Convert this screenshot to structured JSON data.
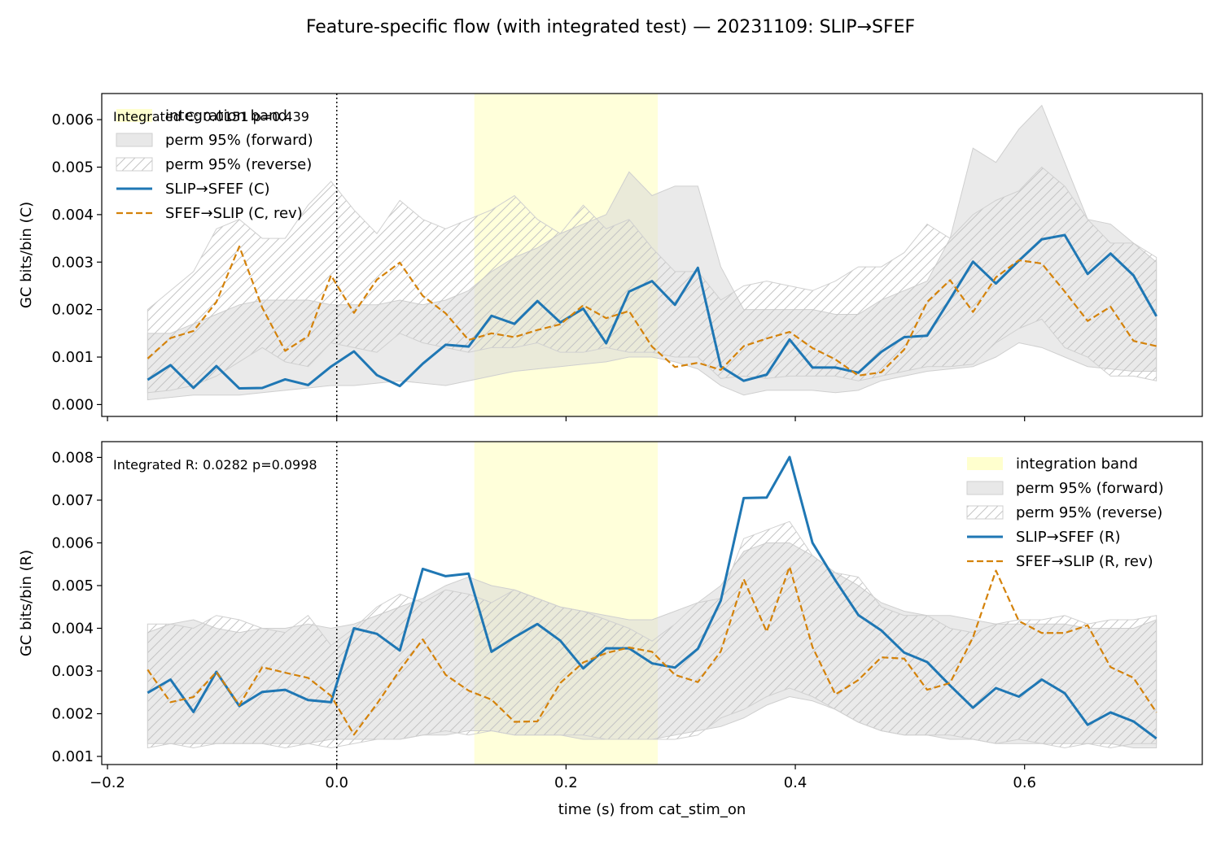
{
  "title": "Feature-specific flow (with integrated test) — 20231109: SLIP→SFEF",
  "xlabel": "time (s) from cat_stim_on",
  "colors": {
    "forward": "#1f77b4",
    "reverse": "#d4820a",
    "band": "#ffffc2",
    "perm_fill": "#d9d9d9",
    "hatch": "#bfbfbf"
  },
  "chart_data": [
    {
      "type": "line",
      "ylabel": "GC bits/bin (C)",
      "annotation": "Integrated C: 0.0151  p=0.439",
      "xlim": [
        -0.205,
        0.755
      ],
      "ylim": [
        -0.00025,
        0.00655
      ],
      "yticks": [
        0,
        0.001,
        0.002,
        0.003,
        0.004,
        0.005,
        0.006
      ],
      "ytick_labels": [
        "0.000",
        "0.001",
        "0.002",
        "0.003",
        "0.004",
        "0.005",
        "0.006"
      ],
      "xticks": [
        -0.2,
        0,
        0.2,
        0.4,
        0.6
      ],
      "xtick_labels": [],
      "integration_band": [
        0.12,
        0.28
      ],
      "stim_line": 0,
      "legend_loc": "upper-left",
      "legend": [
        "integration band",
        "perm 95% (forward)",
        "perm 95% (reverse)",
        "SLIP→SFEF (C)",
        "SFEF→SLIP (C, rev)"
      ],
      "x": [
        -0.165,
        -0.145,
        -0.125,
        -0.105,
        -0.085,
        -0.065,
        -0.045,
        -0.025,
        -0.005,
        0.015,
        0.035,
        0.055,
        0.075,
        0.095,
        0.115,
        0.135,
        0.155,
        0.175,
        0.195,
        0.215,
        0.235,
        0.255,
        0.275,
        0.295,
        0.315,
        0.335,
        0.355,
        0.375,
        0.395,
        0.415,
        0.435,
        0.455,
        0.475,
        0.495,
        0.515,
        0.535,
        0.555,
        0.575,
        0.595,
        0.615,
        0.635,
        0.655,
        0.675,
        0.695,
        0.715
      ],
      "series": [
        {
          "name": "SLIP→SFEF (C)",
          "style": "solid",
          "values": [
            0.00052,
            0.00083,
            0.00035,
            0.00081,
            0.00034,
            0.00035,
            0.00053,
            0.00041,
            0.0008,
            0.00112,
            0.00062,
            0.00039,
            0.00086,
            0.00126,
            0.00122,
            0.00187,
            0.0017,
            0.00218,
            0.00173,
            0.00202,
            0.00129,
            0.00238,
            0.0026,
            0.0021,
            0.00288,
            0.0008,
            0.0005,
            0.00063,
            0.00137,
            0.00078,
            0.00078,
            0.00067,
            0.00111,
            0.00142,
            0.00145,
            0.00222,
            0.00301,
            0.00255,
            0.00303,
            0.00348,
            0.00357,
            0.00275,
            0.00318,
            0.00272,
            0.00186
          ]
        },
        {
          "name": "SFEF→SLIP (C, rev)",
          "style": "dashed",
          "values": [
            0.00097,
            0.0014,
            0.00155,
            0.00216,
            0.00333,
            0.00204,
            0.00113,
            0.00144,
            0.00272,
            0.00193,
            0.00263,
            0.00299,
            0.00229,
            0.00192,
            0.00136,
            0.0015,
            0.00142,
            0.00157,
            0.00169,
            0.00209,
            0.00182,
            0.00197,
            0.00122,
            0.00079,
            0.00088,
            0.00073,
            0.00123,
            0.00139,
            0.00153,
            0.00119,
            0.00095,
            0.00061,
            0.00068,
            0.00116,
            0.00216,
            0.00262,
            0.00195,
            0.00268,
            0.00304,
            0.00297,
            0.00238,
            0.00176,
            0.00206,
            0.00134,
            0.00123
          ]
        }
      ],
      "perm_forward": {
        "upper": [
          0.0015,
          0.0015,
          0.0017,
          0.0019,
          0.0021,
          0.0022,
          0.0022,
          0.0022,
          0.0021,
          0.0021,
          0.0021,
          0.0022,
          0.0021,
          0.0022,
          0.0024,
          0.0028,
          0.0031,
          0.0033,
          0.0036,
          0.0038,
          0.004,
          0.0049,
          0.0044,
          0.0046,
          0.0046,
          0.0029,
          0.002,
          0.002,
          0.002,
          0.002,
          0.0019,
          0.0019,
          0.0022,
          0.0024,
          0.0026,
          0.0035,
          0.0054,
          0.0051,
          0.0058,
          0.0063,
          0.0051,
          0.0039,
          0.0038,
          0.0034,
          0.003
        ],
        "lower": [
          0.0001,
          0.00015,
          0.0002,
          0.0002,
          0.0002,
          0.00025,
          0.0003,
          0.00035,
          0.0004,
          0.0004,
          0.00045,
          0.0005,
          0.00045,
          0.0004,
          0.0005,
          0.0006,
          0.0007,
          0.00075,
          0.0008,
          0.00085,
          0.0009,
          0.001,
          0.001,
          0.0009,
          0.00075,
          0.0004,
          0.0002,
          0.0003,
          0.0003,
          0.0003,
          0.00025,
          0.0003,
          0.0005,
          0.0006,
          0.0007,
          0.00075,
          0.0008,
          0.001,
          0.0013,
          0.0012,
          0.001,
          0.0008,
          0.00075,
          0.0007,
          0.0007
        ]
      },
      "perm_reverse": {
        "upper": [
          0.002,
          0.0024,
          0.0028,
          0.0037,
          0.0039,
          0.0035,
          0.0035,
          0.0042,
          0.0047,
          0.0041,
          0.0036,
          0.0043,
          0.0039,
          0.0037,
          0.0039,
          0.0041,
          0.0044,
          0.0039,
          0.0036,
          0.0042,
          0.0037,
          0.0039,
          0.0033,
          0.0028,
          0.0028,
          0.0022,
          0.0025,
          0.0026,
          0.0025,
          0.0024,
          0.0026,
          0.0029,
          0.0029,
          0.0032,
          0.0038,
          0.0035,
          0.004,
          0.0043,
          0.0045,
          0.005,
          0.0046,
          0.0039,
          0.0034,
          0.0034,
          0.0031
        ],
        "lower": [
          0.00025,
          0.0003,
          0.0004,
          0.0006,
          0.0009,
          0.0012,
          0.0009,
          0.0008,
          0.0013,
          0.0012,
          0.0011,
          0.0015,
          0.0013,
          0.0012,
          0.0011,
          0.0012,
          0.0012,
          0.0013,
          0.0011,
          0.0011,
          0.0012,
          0.0011,
          0.0011,
          0.001,
          0.001,
          0.00055,
          0.0006,
          0.00055,
          0.0006,
          0.0006,
          0.0006,
          0.0005,
          0.0006,
          0.0007,
          0.0008,
          0.0008,
          0.00085,
          0.0013,
          0.0016,
          0.0018,
          0.0012,
          0.001,
          0.0006,
          0.0006,
          0.0005
        ]
      }
    },
    {
      "type": "line",
      "ylabel": "GC bits/bin (R)",
      "annotation": "Integrated R: 0.0282  p=0.0998",
      "xlim": [
        -0.205,
        0.755
      ],
      "ylim": [
        0.00081,
        0.00837
      ],
      "yticks": [
        0.001,
        0.002,
        0.003,
        0.004,
        0.005,
        0.006,
        0.007,
        0.008
      ],
      "ytick_labels": [
        "0.001",
        "0.002",
        "0.003",
        "0.004",
        "0.005",
        "0.006",
        "0.007",
        "0.008"
      ],
      "xticks": [
        -0.2,
        0,
        0.2,
        0.4,
        0.6
      ],
      "xtick_labels": [
        "−0.2",
        "0.0",
        "0.2",
        "0.4",
        "0.6"
      ],
      "integration_band": [
        0.12,
        0.28
      ],
      "stim_line": 0,
      "legend_loc": "upper-right",
      "legend": [
        "integration band",
        "perm 95% (forward)",
        "perm 95% (reverse)",
        "SLIP→SFEF (R)",
        "SFEF→SLIP (R, rev)"
      ],
      "x": [
        -0.165,
        -0.145,
        -0.125,
        -0.105,
        -0.085,
        -0.065,
        -0.045,
        -0.025,
        -0.005,
        0.015,
        0.035,
        0.055,
        0.075,
        0.095,
        0.115,
        0.135,
        0.155,
        0.175,
        0.195,
        0.215,
        0.235,
        0.255,
        0.275,
        0.295,
        0.315,
        0.335,
        0.355,
        0.375,
        0.395,
        0.415,
        0.435,
        0.455,
        0.475,
        0.495,
        0.515,
        0.535,
        0.555,
        0.575,
        0.595,
        0.615,
        0.635,
        0.655,
        0.675,
        0.695,
        0.715
      ],
      "series": [
        {
          "name": "SLIP→SFEF (R)",
          "style": "solid",
          "values": [
            0.00249,
            0.0028,
            0.00204,
            0.00298,
            0.00218,
            0.00251,
            0.00256,
            0.00232,
            0.00227,
            0.004,
            0.00387,
            0.00348,
            0.00539,
            0.00522,
            0.00528,
            0.00345,
            0.00379,
            0.0041,
            0.00371,
            0.00306,
            0.00353,
            0.00353,
            0.00318,
            0.00308,
            0.00352,
            0.00465,
            0.00705,
            0.00706,
            0.00801,
            0.006,
            0.00512,
            0.00431,
            0.00395,
            0.00343,
            0.00321,
            0.00266,
            0.00214,
            0.0026,
            0.0024,
            0.0028,
            0.00248,
            0.00174,
            0.00203,
            0.00182,
            0.00142
          ]
        },
        {
          "name": "SFEF→SLIP (R, rev)",
          "style": "dashed",
          "values": [
            0.00303,
            0.00227,
            0.00239,
            0.00298,
            0.0022,
            0.00309,
            0.00296,
            0.00284,
            0.00242,
            0.00151,
            0.00223,
            0.00302,
            0.00374,
            0.00291,
            0.00254,
            0.00233,
            0.00181,
            0.00182,
            0.00272,
            0.0032,
            0.00342,
            0.00355,
            0.00345,
            0.00291,
            0.00274,
            0.00346,
            0.00515,
            0.00392,
            0.00544,
            0.00356,
            0.00245,
            0.00279,
            0.00332,
            0.00329,
            0.00256,
            0.00272,
            0.00379,
            0.00535,
            0.00417,
            0.00389,
            0.00389,
            0.00407,
            0.00309,
            0.00284,
            0.00203
          ]
        }
      ],
      "perm_forward": {
        "upper": [
          0.0039,
          0.0041,
          0.0042,
          0.004,
          0.0039,
          0.004,
          0.004,
          0.0041,
          0.004,
          0.0041,
          0.0043,
          0.0045,
          0.0047,
          0.005,
          0.0052,
          0.005,
          0.0049,
          0.0047,
          0.0045,
          0.0044,
          0.0043,
          0.0042,
          0.0042,
          0.0044,
          0.0046,
          0.005,
          0.0058,
          0.006,
          0.006,
          0.0057,
          0.0053,
          0.005,
          0.0046,
          0.0044,
          0.0043,
          0.0043,
          0.0042,
          0.0041,
          0.0041,
          0.0041,
          0.0041,
          0.004,
          0.004,
          0.004,
          0.0042
        ],
        "lower": [
          0.0013,
          0.0013,
          0.0013,
          0.0013,
          0.0013,
          0.0013,
          0.0013,
          0.0013,
          0.0014,
          0.0014,
          0.0014,
          0.0014,
          0.0015,
          0.0015,
          0.0016,
          0.0016,
          0.0015,
          0.0015,
          0.0015,
          0.0014,
          0.0014,
          0.0014,
          0.0014,
          0.0015,
          0.0016,
          0.0017,
          0.0019,
          0.0022,
          0.0024,
          0.0023,
          0.0021,
          0.0018,
          0.0016,
          0.0015,
          0.0015,
          0.0014,
          0.0014,
          0.0013,
          0.0013,
          0.0013,
          0.0013,
          0.0013,
          0.0013,
          0.0012,
          0.0012
        ]
      },
      "perm_reverse": {
        "upper": [
          0.0041,
          0.0041,
          0.004,
          0.0043,
          0.0042,
          0.004,
          0.0039,
          0.0043,
          0.0036,
          0.004,
          0.0045,
          0.0048,
          0.0046,
          0.0049,
          0.0048,
          0.0046,
          0.0049,
          0.0047,
          0.0045,
          0.0044,
          0.0042,
          0.004,
          0.0037,
          0.0041,
          0.0046,
          0.0047,
          0.0061,
          0.0063,
          0.0065,
          0.0057,
          0.0053,
          0.0052,
          0.0045,
          0.0043,
          0.0043,
          0.004,
          0.0039,
          0.0041,
          0.0042,
          0.0042,
          0.0043,
          0.0041,
          0.0042,
          0.0042,
          0.0043
        ],
        "lower": [
          0.0012,
          0.0013,
          0.0012,
          0.0013,
          0.0013,
          0.0013,
          0.0012,
          0.0013,
          0.0012,
          0.0013,
          0.0014,
          0.0014,
          0.0015,
          0.0016,
          0.0015,
          0.0016,
          0.0015,
          0.0015,
          0.0015,
          0.0015,
          0.0014,
          0.0014,
          0.0014,
          0.0014,
          0.0015,
          0.0019,
          0.0021,
          0.0024,
          0.0026,
          0.0024,
          0.0021,
          0.0018,
          0.0016,
          0.0015,
          0.0015,
          0.0015,
          0.0014,
          0.0013,
          0.0014,
          0.0013,
          0.0012,
          0.0013,
          0.0012,
          0.0013,
          0.0013
        ]
      }
    }
  ]
}
